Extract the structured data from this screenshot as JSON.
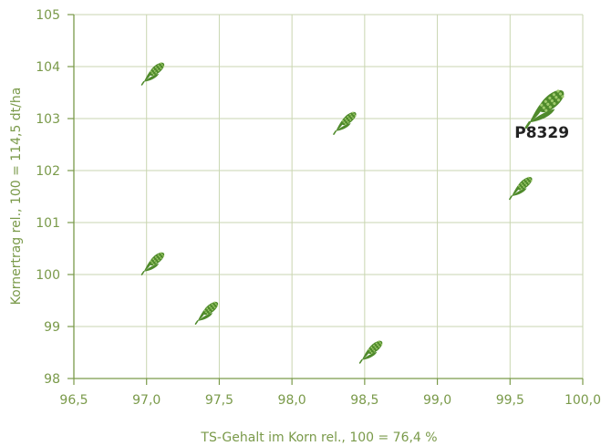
{
  "colors": {
    "accent": "#7a9a4a",
    "grid": "#c9d6b0",
    "marker": "#4f8a2b",
    "marker_light": "#9fca6c",
    "highlight_text": "#222222"
  },
  "icons": {
    "marker": "corn-cob-icon"
  },
  "chart_data": {
    "type": "scatter",
    "title": "",
    "xlabel": "TS-Gehalt im Korn rel., 100 = 76,4 %",
    "ylabel": "Kornertrag rel., 100 = 114,5 dt/ha",
    "xlim": [
      96.5,
      100.0
    ],
    "ylim": [
      98,
      105
    ],
    "x_ticks": [
      96.5,
      97.0,
      97.5,
      98.0,
      98.5,
      99.0,
      99.5,
      100.0
    ],
    "x_tick_labels": [
      "96,5",
      "97,0",
      "97,5",
      "98,0",
      "98,5",
      "99,0",
      "99,5",
      "100,0"
    ],
    "y_ticks": [
      98,
      99,
      100,
      101,
      102,
      103,
      104,
      105
    ],
    "y_tick_labels": [
      "98",
      "99",
      "100",
      "101",
      "102",
      "103",
      "104",
      "105"
    ],
    "grid": true,
    "points": [
      {
        "x": 97.05,
        "y": 103.9
      },
      {
        "x": 98.37,
        "y": 102.95
      },
      {
        "x": 99.58,
        "y": 101.7
      },
      {
        "x": 97.05,
        "y": 100.25
      },
      {
        "x": 97.42,
        "y": 99.3
      },
      {
        "x": 98.55,
        "y": 98.55
      },
      {
        "x": 99.75,
        "y": 103.25,
        "label": "P8329",
        "highlight": true
      }
    ]
  }
}
